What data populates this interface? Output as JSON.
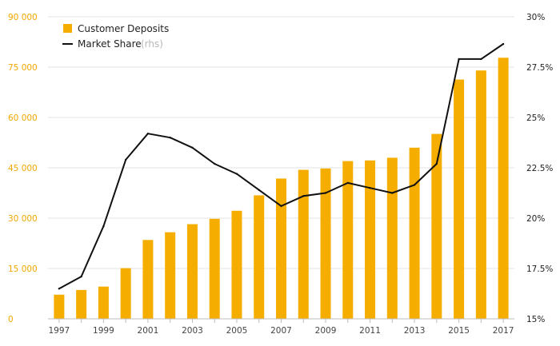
{
  "chart_data": {
    "type": "bar",
    "categories": [
      "1997",
      "1998",
      "1999",
      "2000",
      "2001",
      "2002",
      "2003",
      "2004",
      "2005",
      "2006",
      "2007",
      "2008",
      "2009",
      "2010",
      "2011",
      "2012",
      "2013",
      "2014",
      "2015",
      "2016",
      "2017"
    ],
    "x_tick_labels": [
      "1997",
      "1999",
      "2001",
      "2003",
      "2005",
      "2007",
      "2009",
      "2011",
      "2013",
      "2015",
      "2017"
    ],
    "series": [
      {
        "name": "Customer Deposits",
        "type": "bar",
        "axis": "left",
        "color": "#f5ae00",
        "values": [
          7200,
          8600,
          9600,
          15100,
          23500,
          25800,
          28200,
          29800,
          32200,
          36800,
          41800,
          44400,
          44800,
          47000,
          47200,
          48000,
          51000,
          55100,
          71300,
          74000,
          77800
        ]
      },
      {
        "name": "Market Share",
        "legend_suffix": "(rhs)",
        "type": "line",
        "axis": "right",
        "color": "#111111",
        "values": [
          16.5,
          17.1,
          19.6,
          22.9,
          24.2,
          24.0,
          23.5,
          22.7,
          22.2,
          21.4,
          20.6,
          21.1,
          21.25,
          21.75,
          21.5,
          21.25,
          21.65,
          22.7,
          27.9,
          27.9,
          28.65
        ]
      }
    ],
    "y_left": {
      "min": 0,
      "max": 90000,
      "ticks": [
        "0",
        "15 000",
        "30 000",
        "45 000",
        "60 000",
        "75 000",
        "90 000"
      ],
      "tick_values": [
        0,
        15000,
        30000,
        45000,
        60000,
        75000,
        90000
      ],
      "tick_color": "#f0a800"
    },
    "y_right": {
      "min": 15,
      "max": 30,
      "ticks": [
        "15%",
        "17.5%",
        "20%",
        "22.5%",
        "25%",
        "27.5%",
        "30%"
      ],
      "tick_values": [
        15,
        17.5,
        20,
        22.5,
        25,
        27.5,
        30
      ]
    },
    "legend_position": "top-left",
    "grid": true,
    "title": "",
    "xlabel": "",
    "ylabel": ""
  }
}
